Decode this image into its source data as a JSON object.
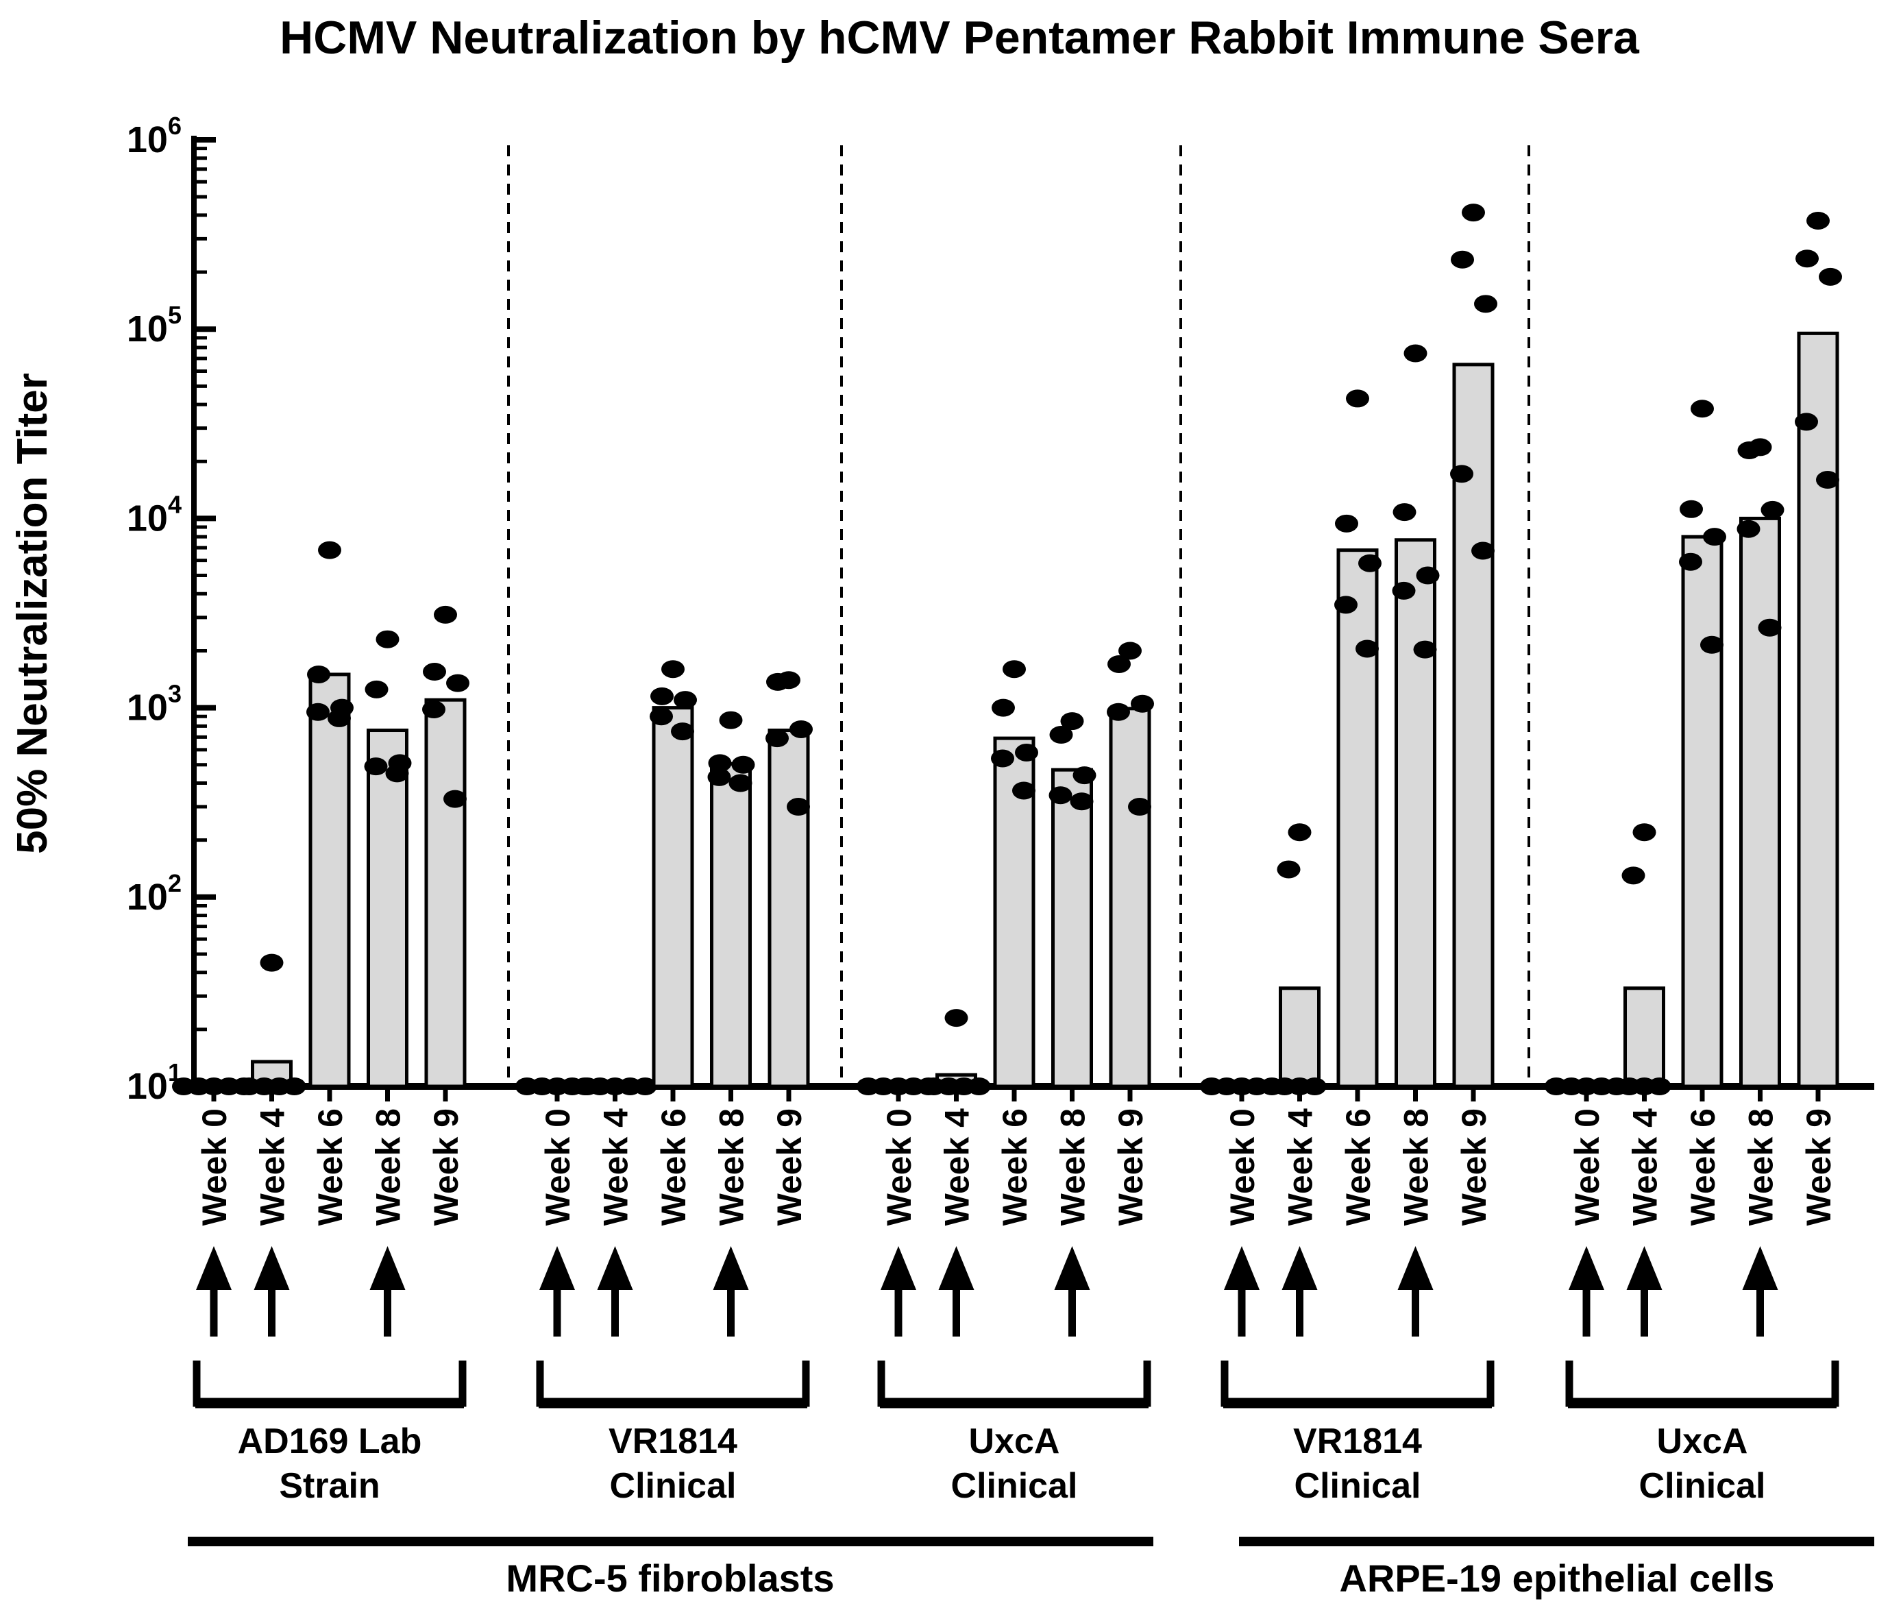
{
  "colors": {
    "background": "#ffffff",
    "bar_fill": "#d9d9d9",
    "ink": "#000000"
  },
  "chart_data": {
    "type": "bar",
    "subtype": "bar-with-scatter-overlay",
    "title": "HCMV Neutralization by hCMV Pentamer Rabbit Immune Sera",
    "ylabel": "50% Neutralization Titer",
    "xlabel": "",
    "y_scale": "log10",
    "ylim": [
      10,
      1000000
    ],
    "y_tick_base": "10",
    "y_tick_exponents": [
      1,
      2,
      3,
      4,
      5,
      6
    ],
    "y_ticks": [
      "10^1",
      "10^2",
      "10^3",
      "10^4",
      "10^5",
      "10^6"
    ],
    "grid": "off",
    "legend": "none",
    "week_categories": [
      "Week 0",
      "Week 4",
      "Week 6",
      "Week 8",
      "Week 9"
    ],
    "immunization_arrow_week_indices": [
      0,
      1,
      3
    ],
    "panels": [
      {
        "label": "MRC-5 fibroblasts",
        "groups": [
          {
            "name_line1": "AD169 Lab",
            "name_line2": "Strain",
            "weeks": [
              {
                "week": "Week 0",
                "bar": 10,
                "points": [
                  10,
                  10,
                  10,
                  10,
                  10
                ]
              },
              {
                "week": "Week 4",
                "bar": 13.5,
                "points": [
                  45,
                  10,
                  10,
                  10,
                  10
                ]
              },
              {
                "week": "Week 6",
                "bar": 1500,
                "points": [
                  6800,
                  1500,
                  1000,
                  950,
                  880
                ]
              },
              {
                "week": "Week 8",
                "bar": 760,
                "points": [
                  2300,
                  1250,
                  510,
                  490,
                  450
                ]
              },
              {
                "week": "Week 9",
                "bar": 1100,
                "points": [
                  3100,
                  1550,
                  1350,
                  980,
                  330
                ]
              }
            ]
          },
          {
            "name_line1": "VR1814",
            "name_line2": "Clinical",
            "weeks": [
              {
                "week": "Week 0",
                "bar": 10,
                "points": [
                  10,
                  10,
                  10,
                  10,
                  10
                ]
              },
              {
                "week": "Week 4",
                "bar": 10,
                "points": [
                  10,
                  10,
                  10,
                  10,
                  10
                ]
              },
              {
                "week": "Week 6",
                "bar": 1000,
                "points": [
                  1600,
                  1150,
                  1100,
                  900,
                  750
                ]
              },
              {
                "week": "Week 8",
                "bar": 505,
                "points": [
                  860,
                  510,
                  500,
                  430,
                  400
                ]
              },
              {
                "week": "Week 9",
                "bar": 760,
                "points": [
                  1400,
                  1370,
                  770,
                  690,
                  300
                ]
              }
            ]
          },
          {
            "name_line1": "UxcA",
            "name_line2": "Clinical",
            "weeks": [
              {
                "week": "Week 0",
                "bar": 10,
                "points": [
                  10,
                  10,
                  10,
                  10,
                  10
                ]
              },
              {
                "week": "Week 4",
                "bar": 11.5,
                "points": [
                  23,
                  10,
                  10,
                  10,
                  10
                ]
              },
              {
                "week": "Week 6",
                "bar": 690,
                "points": [
                  1600,
                  1000,
                  580,
                  540,
                  365
                ]
              },
              {
                "week": "Week 8",
                "bar": 470,
                "points": [
                  850,
                  720,
                  440,
                  345,
                  320
                ]
              },
              {
                "week": "Week 9",
                "bar": 990,
                "points": [
                  2000,
                  1700,
                  1050,
                  950,
                  300
                ]
              }
            ]
          }
        ]
      },
      {
        "label": "ARPE-19 epithelial cells",
        "groups": [
          {
            "name_line1": "VR1814",
            "name_line2": "Clinical",
            "weeks": [
              {
                "week": "Week 0",
                "bar": 10,
                "points": [
                  10,
                  10,
                  10,
                  10,
                  10
                ]
              },
              {
                "week": "Week 4",
                "bar": 33,
                "points": [
                  220,
                  140,
                  10,
                  10,
                  10
                ]
              },
              {
                "week": "Week 6",
                "bar": 6800,
                "points": [
                  43000,
                  9400,
                  5800,
                  3500,
                  2050
                ]
              },
              {
                "week": "Week 8",
                "bar": 7700,
                "points": [
                  74500,
                  10800,
                  5000,
                  4150,
                  2030
                ]
              },
              {
                "week": "Week 9",
                "bar": 65000,
                "points": [
                  413000,
                  233000,
                  136000,
                  17200,
                  6750
                ]
              }
            ]
          },
          {
            "name_line1": "UxcA",
            "name_line2": "Clinical",
            "weeks": [
              {
                "week": "Week 0",
                "bar": 10,
                "points": [
                  10,
                  10,
                  10,
                  10,
                  10
                ]
              },
              {
                "week": "Week 4",
                "bar": 33,
                "points": [
                  220,
                  130,
                  10,
                  10,
                  10
                ]
              },
              {
                "week": "Week 6",
                "bar": 8000,
                "points": [
                  38000,
                  11200,
                  8000,
                  5900,
                  2150
                ]
              },
              {
                "week": "Week 8",
                "bar": 10000,
                "points": [
                  23800,
                  22900,
                  11100,
                  8800,
                  2650
                ]
              },
              {
                "week": "Week 9",
                "bar": 95000,
                "points": [
                  374000,
                  236000,
                  189000,
                  32400,
                  16000
                ]
              }
            ]
          }
        ]
      }
    ]
  }
}
